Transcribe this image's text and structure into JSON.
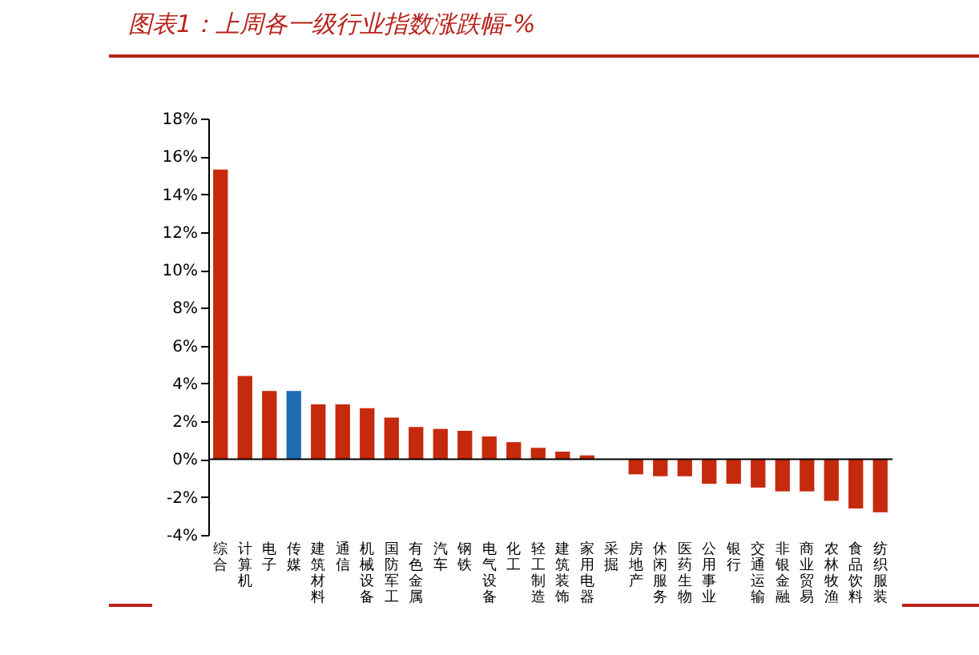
{
  "chart_data": {
    "type": "bar",
    "title": "图表1：上周各一级行业指数涨跌幅-%",
    "categories": [
      "综合",
      "计算机",
      "电子",
      "传媒",
      "建筑材料",
      "通信",
      "机械设备",
      "国防军工",
      "有色金属",
      "汽车",
      "钢铁",
      "电气设备",
      "化工",
      "轻工制造",
      "建筑装饰",
      "家用电器",
      "采掘",
      "房地产",
      "休闲服务",
      "医药生物",
      "公用事业",
      "银行",
      "交通运输",
      "非银金融",
      "商业贸易",
      "农林牧渔",
      "食品饮料",
      "纺织服装"
    ],
    "values": [
      15.3,
      4.4,
      3.6,
      3.6,
      2.9,
      2.9,
      2.7,
      2.2,
      1.7,
      1.6,
      1.5,
      1.2,
      0.9,
      0.6,
      0.4,
      0.2,
      0,
      -0.8,
      -0.9,
      -0.9,
      -1.3,
      -1.3,
      -1.5,
      -1.7,
      -1.7,
      -2.2,
      -2.6,
      -2.8
    ],
    "colors": [
      "#c52a0c",
      "#c52a0c",
      "#c52a0c",
      "#1f6cb4",
      "#c52a0c",
      "#c52a0c",
      "#c52a0c",
      "#c52a0c",
      "#c52a0c",
      "#c52a0c",
      "#c52a0c",
      "#c52a0c",
      "#c52a0c",
      "#c52a0c",
      "#c52a0c",
      "#c52a0c",
      "#c52a0c",
      "#c52a0c",
      "#c52a0c",
      "#c52a0c",
      "#c52a0c",
      "#c52a0c",
      "#c52a0c",
      "#c52a0c",
      "#c52a0c",
      "#c52a0c",
      "#c52a0c",
      "#c52a0c"
    ],
    "ylim": [
      -4,
      18
    ],
    "yticks": [
      {
        "value": -4,
        "label": "-4%"
      },
      {
        "value": -2,
        "label": "-2%"
      },
      {
        "value": 0,
        "label": "0%"
      },
      {
        "value": 2,
        "label": "2%"
      },
      {
        "value": 4,
        "label": "4%"
      },
      {
        "value": 6,
        "label": "6%"
      },
      {
        "value": 8,
        "label": "8%"
      },
      {
        "value": 10,
        "label": "10%"
      },
      {
        "value": 12,
        "label": "12%"
      },
      {
        "value": 14,
        "label": "14%"
      },
      {
        "value": 16,
        "label": "16%"
      },
      {
        "value": 18,
        "label": "18%"
      }
    ],
    "legend": false
  }
}
